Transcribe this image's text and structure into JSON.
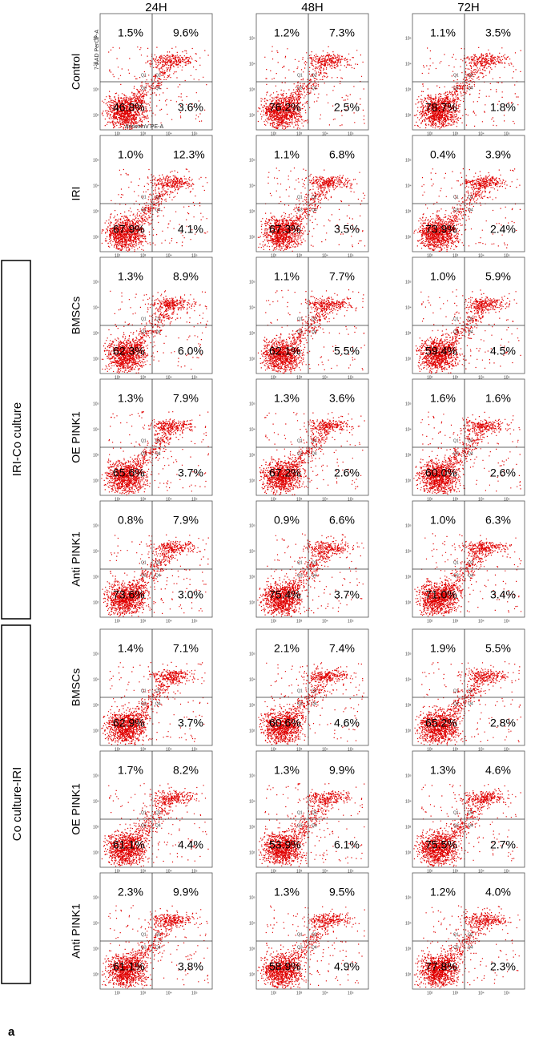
{
  "columns": [
    "24H",
    "48H",
    "72H"
  ],
  "axis_labels": {
    "y": "7-AAD PerCP-A",
    "x": "AnnexinV PE-A"
  },
  "quadrants": [
    "Q1",
    "Q2",
    "Q3",
    "Q4"
  ],
  "ticks": [
    "10²",
    "10³",
    "10⁴",
    "10⁵"
  ],
  "groups": [
    {
      "label": "IRI-Co culture"
    },
    {
      "label": "Co culture-IRI"
    }
  ],
  "rows": [
    {
      "label": "Control",
      "plots": [
        {
          "q1": "1.5%",
          "q2": "9.6%",
          "q3": "46.8%",
          "q4": "3.6%"
        },
        {
          "q1": "1.2%",
          "q2": "7.3%",
          "q3": "76.2%",
          "q4": "2.5%"
        },
        {
          "q1": "1.1%",
          "q2": "3.5%",
          "q3": "78.7%",
          "q4": "1.8%"
        }
      ]
    },
    {
      "label": "IRI",
      "plots": [
        {
          "q1": "1.0%",
          "q2": "12.3%",
          "q3": "67.9%",
          "q4": "4.1%"
        },
        {
          "q1": "1.1%",
          "q2": "6.8%",
          "q3": "67.3%",
          "q4": "3.5%"
        },
        {
          "q1": "0.4%",
          "q2": "3.9%",
          "q3": "73.9%",
          "q4": "2.4%"
        }
      ]
    },
    {
      "label": "BMSCs",
      "plots": [
        {
          "q1": "1.3%",
          "q2": "8.9%",
          "q3": "62.3%",
          "q4": "6.0%"
        },
        {
          "q1": "1.1%",
          "q2": "7.7%",
          "q3": "62.1%",
          "q4": "5.5%"
        },
        {
          "q1": "1.0%",
          "q2": "5.9%",
          "q3": "59.4%",
          "q4": "4.5%"
        }
      ]
    },
    {
      "label": "OE PINK1",
      "plots": [
        {
          "q1": "1.3%",
          "q2": "7.9%",
          "q3": "65.6%",
          "q4": "3.7%"
        },
        {
          "q1": "1.3%",
          "q2": "3.6%",
          "q3": "67.2%",
          "q4": "2.6%"
        },
        {
          "q1": "1.6%",
          "q2": "1.6%",
          "q3": "60.0%",
          "q4": "2.6%"
        }
      ]
    },
    {
      "label": "Anti PINK1",
      "plots": [
        {
          "q1": "0.8%",
          "q2": "7.9%",
          "q3": "73.6%",
          "q4": "3.0%"
        },
        {
          "q1": "0.9%",
          "q2": "6.6%",
          "q3": "75.4%",
          "q4": "3.7%"
        },
        {
          "q1": "1.0%",
          "q2": "6.3%",
          "q3": "71.0%",
          "q4": "3.4%"
        }
      ]
    },
    {
      "label": "BMSCs",
      "plots": [
        {
          "q1": "1.4%",
          "q2": "7.1%",
          "q3": "62.9%",
          "q4": "3.7%"
        },
        {
          "q1": "2.1%",
          "q2": "7.4%",
          "q3": "60.6%",
          "q4": "4.6%"
        },
        {
          "q1": "1.9%",
          "q2": "5.5%",
          "q3": "65.2%",
          "q4": "2.8%"
        }
      ]
    },
    {
      "label": "OE PINK1",
      "plots": [
        {
          "q1": "1.7%",
          "q2": "8.2%",
          "q3": "61.1%",
          "q4": "4.4%"
        },
        {
          "q1": "1.3%",
          "q2": "9.9%",
          "q3": "53.9%",
          "q4": "6.1%"
        },
        {
          "q1": "1.3%",
          "q2": "4.6%",
          "q3": "75.5%",
          "q4": "2.7%"
        }
      ]
    },
    {
      "label": "Anti PINK1",
      "plots": [
        {
          "q1": "2.3%",
          "q2": "9.9%",
          "q3": "61.1%",
          "q4": "3.8%"
        },
        {
          "q1": "1.3%",
          "q2": "9.5%",
          "q3": "58.9%",
          "q4": "4.9%"
        },
        {
          "q1": "1.2%",
          "q2": "4.0%",
          "q3": "77.8%",
          "q4": "2.3%"
        }
      ]
    }
  ],
  "panel_label": "a"
}
